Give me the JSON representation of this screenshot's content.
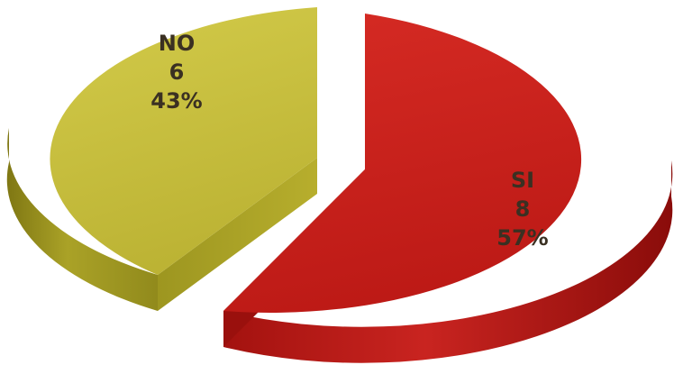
{
  "chart_data": {
    "type": "pie",
    "title": "",
    "style": "3d-exploded",
    "slices": [
      {
        "label": "SI",
        "value": 8,
        "percent": "57%",
        "color": "#c8201c"
      },
      {
        "label": "NO",
        "value": 6,
        "percent": "43%",
        "color": "#c9c13c"
      }
    ]
  }
}
